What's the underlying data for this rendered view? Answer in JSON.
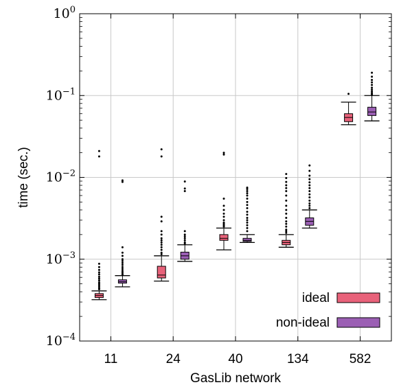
{
  "chart_data": {
    "type": "box",
    "xlabel": "GasLib network",
    "ylabel": "time (sec.)",
    "yscale": "log",
    "ylim": [
      0.0001,
      1
    ],
    "yticks": [
      {
        "base": "10",
        "exp": "0"
      },
      {
        "base": "10",
        "exp": "−1"
      },
      {
        "base": "10",
        "exp": "−2"
      },
      {
        "base": "10",
        "exp": "−3"
      },
      {
        "base": "10",
        "exp": "−4"
      }
    ],
    "categories": [
      "11",
      "24",
      "40",
      "134",
      "582"
    ],
    "grid": true,
    "legend_position": "bottom-right",
    "series": [
      {
        "name": "ideal",
        "color": "#e8627a",
        "boxes": [
          {
            "whisker_low": 0.00032,
            "q1": 0.00034,
            "median": 0.00036,
            "q3": 0.00038,
            "whisker_high": 0.00041,
            "outliers": [
              0.021,
              0.018,
              0.00088,
              0.0008,
              0.00074,
              0.00069,
              0.00065,
              0.00061,
              0.00058,
              0.00055,
              0.00052,
              0.0005,
              0.00048,
              0.00046,
              0.00044,
              0.00043
            ]
          },
          {
            "whisker_low": 0.00054,
            "q1": 0.00059,
            "median": 0.00064,
            "q3": 0.00082,
            "whisker_high": 0.0011,
            "outliers": [
              0.022,
              0.018,
              0.0033,
              0.0029,
              0.0022,
              0.002,
              0.0018,
              0.0017,
              0.0016,
              0.0015,
              0.0014,
              0.0013,
              0.0012,
              0.00115
            ]
          },
          {
            "whisker_low": 0.0013,
            "q1": 0.0017,
            "median": 0.0018,
            "q3": 0.002,
            "whisker_high": 0.0024,
            "outliers": [
              0.02,
              0.019,
              0.0055,
              0.0045,
              0.004,
              0.0036,
              0.0033,
              0.003,
              0.0028,
              0.0027,
              0.0026,
              0.0025
            ]
          },
          {
            "whisker_low": 0.0014,
            "q1": 0.0015,
            "median": 0.0016,
            "q3": 0.0017,
            "whisker_high": 0.002,
            "outliers": [
              0.011,
              0.0098,
              0.0088,
              0.008,
              0.0074,
              0.0068,
              0.006,
              0.0052,
              0.0045,
              0.004,
              0.0036,
              0.0032,
              0.0029,
              0.0027,
              0.0025,
              0.0023,
              0.0022,
              0.0021
            ]
          },
          {
            "whisker_low": 0.044,
            "q1": 0.048,
            "median": 0.054,
            "q3": 0.06,
            "whisker_high": 0.083,
            "outliers": [
              0.105
            ]
          }
        ]
      },
      {
        "name": "non-ideal",
        "color": "#9b5fb4",
        "boxes": [
          {
            "whisker_low": 0.00046,
            "q1": 0.00051,
            "median": 0.00053,
            "q3": 0.00056,
            "whisker_high": 0.00063,
            "outliers": [
              0.0092,
              0.0088,
              0.0014,
              0.0012,
              0.0011,
              0.001,
              0.00095,
              0.0009,
              0.00085,
              0.0008,
              0.00076,
              0.00072,
              0.00069,
              0.00066,
              0.00064
            ]
          },
          {
            "whisker_low": 0.00094,
            "q1": 0.001,
            "median": 0.0011,
            "q3": 0.00122,
            "whisker_high": 0.0015,
            "outliers": [
              0.0089,
              0.0073,
              0.0068,
              0.0022,
              0.002,
              0.0019,
              0.0018,
              0.0017,
              0.0016,
              0.00155
            ]
          },
          {
            "whisker_low": 0.0016,
            "q1": 0.00165,
            "median": 0.0017,
            "q3": 0.0018,
            "whisker_high": 0.002,
            "outliers": [
              0.0075,
              0.0072,
              0.0068,
              0.0064,
              0.006,
              0.0055,
              0.005,
              0.0046,
              0.0042,
              0.0038,
              0.0035,
              0.0032,
              0.003,
              0.0028,
              0.0026,
              0.0024,
              0.0022
            ]
          },
          {
            "whisker_low": 0.0024,
            "q1": 0.0026,
            "median": 0.0029,
            "q3": 0.0032,
            "whisker_high": 0.004,
            "outliers": [
              0.014,
              0.012,
              0.0105,
              0.0095,
              0.0087,
              0.008,
              0.0074,
              0.0068,
              0.0062,
              0.0057,
              0.0052,
              0.0048,
              0.0045,
              0.0042
            ]
          },
          {
            "whisker_low": 0.049,
            "q1": 0.057,
            "median": 0.063,
            "q3": 0.072,
            "whisker_high": 0.1,
            "outliers": [
              0.19,
              0.17,
              0.155,
              0.145,
              0.135,
              0.125,
              0.118,
              0.112,
              0.107,
              0.103
            ]
          }
        ]
      }
    ]
  }
}
